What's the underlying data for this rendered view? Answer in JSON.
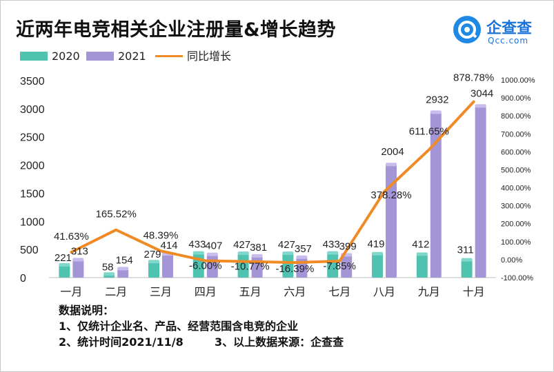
{
  "header": {
    "title": "近两年电竞相关企业注册量&增长趋势"
  },
  "logo": {
    "name": "企查查",
    "sub": "Qcc.com",
    "color": "#1e88e5"
  },
  "legend": {
    "series_2020": "2020",
    "series_2021": "2021",
    "growth": "同比增长"
  },
  "notes": {
    "heading": "数据说明：",
    "line1": "1、仅统计企业名、产品、经营范围含电竞的企业",
    "line2a": "2、统计时间2021/11/8",
    "line2b": "3、以上数据来源：企查查"
  },
  "colors": {
    "series_2020": "#4fc2b0",
    "series_2021": "#a496d6",
    "growth_line": "#f08a24"
  },
  "chart_data": {
    "type": "bar",
    "categories": [
      "一月",
      "二月",
      "三月",
      "四月",
      "五月",
      "六月",
      "七月",
      "八月",
      "九月",
      "十月"
    ],
    "series": [
      {
        "name": "2020",
        "values": [
          221,
          58,
          279,
          433,
          427,
          427,
          433,
          419,
          412,
          311
        ]
      },
      {
        "name": "2021",
        "values": [
          313,
          154,
          414,
          407,
          381,
          357,
          399,
          2004,
          2932,
          3044
        ]
      }
    ],
    "line_series": {
      "name": "同比增长",
      "values": [
        41.63,
        165.52,
        48.39,
        -6.0,
        -10.77,
        -16.39,
        -7.85,
        378.28,
        611.65,
        878.78
      ],
      "labels": [
        "41.63%",
        "165.52%",
        "48.39%",
        "-6.00%",
        "-10.77%",
        "-16.39%",
        "-7.85%",
        "378.28%",
        "611.65%",
        "878.78%"
      ]
    },
    "y_left": {
      "ylim": [
        0,
        3500
      ],
      "ticks": [
        0,
        500,
        1000,
        1500,
        2000,
        2500,
        3000,
        3500
      ],
      "tick_labels": [
        "0",
        "500",
        "1000",
        "1500",
        "2000",
        "2500",
        "3000",
        "3500"
      ]
    },
    "y_right": {
      "ylim": [
        -100,
        1000
      ],
      "ticks": [
        -100,
        0,
        100,
        200,
        300,
        400,
        500,
        600,
        700,
        800,
        900,
        1000
      ],
      "tick_labels": [
        "-100.00%",
        "0.00%",
        "100.00%",
        "200.00%",
        "300.00%",
        "400.00%",
        "500.00%",
        "600.00%",
        "700.00%",
        "800.00%",
        "900.00%",
        "1000.00%"
      ]
    },
    "grid": false,
    "legend_position": "top-left"
  }
}
